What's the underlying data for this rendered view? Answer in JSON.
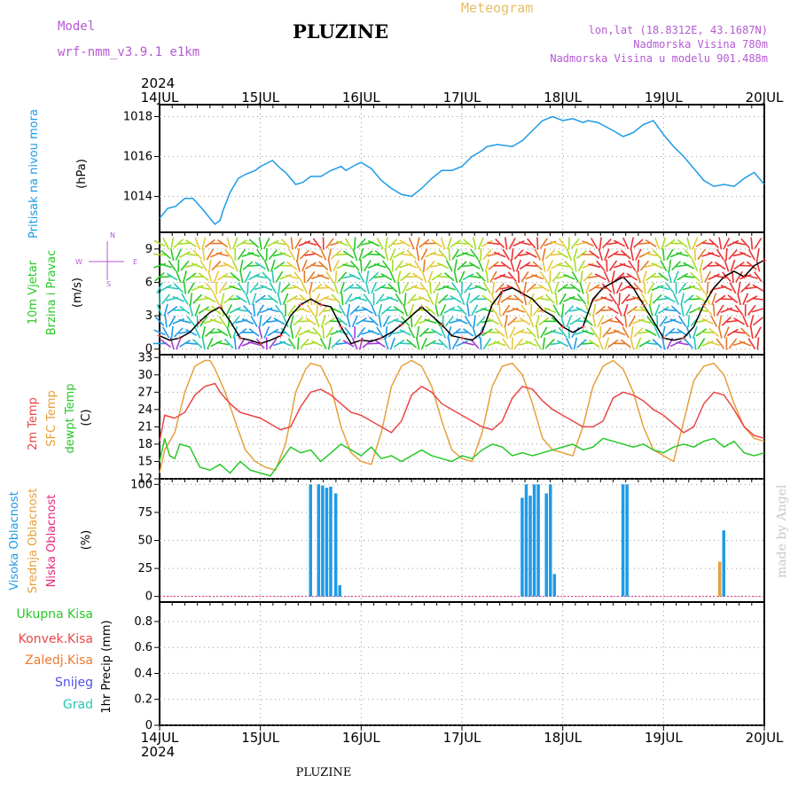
{
  "header": {
    "model_label": "Model",
    "model_name": "wrf-nmm_v3.9.1 e1km",
    "location": "PLUZINE",
    "meteogram_label": "Meteogram",
    "lonlat": "lon,lat (18.8312E, 43.1687N)",
    "elevation": "Nadmorska Visina 780m",
    "model_elevation": "Nadmorska Visina u modelu 901.488m",
    "year": "2024",
    "footer_location": "PLUZINE",
    "signature": "made by Angel"
  },
  "colors": {
    "pressure": "#1e9be6",
    "temp2m": "#eb4646",
    "sfc_temp": "#e6a03c",
    "dewpt": "#28c828",
    "high_cloud": "#1e9be6",
    "mid_cloud": "#e6a03c",
    "low_cloud": "#e6287d",
    "total_precip": "#28c828",
    "conv_precip": "#eb4646",
    "frozen_precip": "#f0782d",
    "snow": "#5050e6",
    "hail": "#28c8b4",
    "model": "#b45ad2",
    "meteogram": "#e6be64"
  },
  "x_axis": {
    "labels": [
      "14JUL",
      "15JUL",
      "16JUL",
      "17JUL",
      "18JUL",
      "19JUL",
      "20JUL"
    ]
  },
  "panels": {
    "pressure": {
      "label": "Pritisak na nivou mora",
      "unit": "(hPa)",
      "ticks": [
        "1014",
        "1016",
        "1018"
      ]
    },
    "wind": {
      "label1": "10m Vjetar",
      "label2": "Brzina i Pravac",
      "unit": "(m/s)",
      "ticks": [
        "0",
        "3",
        "6",
        "9"
      ],
      "compass_w": "W",
      "compass_e": "E",
      "compass_n": "N",
      "compass_s": "S"
    },
    "temp": {
      "label_2m": "2m Temp",
      "label_sfc": "SFC Temp",
      "label_dew": "dewpt Temp",
      "unit": "(C)",
      "ticks": [
        "12",
        "15",
        "18",
        "21",
        "24",
        "27",
        "30",
        "33"
      ]
    },
    "cloud": {
      "label_high": "Visoka Oblacnost",
      "label_mid": "Srednja Oblacnost",
      "label_low": "Niska Oblacnost",
      "unit": "(%)",
      "ticks": [
        "0",
        "25",
        "50",
        "75",
        "100"
      ]
    },
    "precip": {
      "label_total": "Ukupna Kisa",
      "label_conv": "Konvek.Kisa",
      "label_frozen": "Zaledj.Kisa",
      "label_snow": "Snijeg",
      "label_hail": "Grad",
      "unit": "1hr Precip (mm)",
      "ticks": [
        "0",
        "0.2",
        "0.4",
        "0.6",
        "0.8"
      ]
    }
  },
  "chart_data": [
    {
      "type": "line",
      "title": "Pritisak na nivou mora",
      "ylabel": "(hPa)",
      "ylim": [
        1012.2,
        1018.6
      ],
      "x_unit": "days from 14JUL 00",
      "series": [
        {
          "x": [
            0,
            0.08,
            0.16,
            0.25,
            0.33,
            0.42,
            0.5,
            0.55,
            0.6,
            0.63,
            0.7,
            0.78,
            0.85,
            0.95,
            1.0,
            1.12,
            1.2,
            1.25,
            1.35,
            1.42,
            1.5,
            1.6,
            1.7,
            1.8,
            1.85,
            1.95,
            2.0,
            2.1,
            2.2,
            2.3,
            2.4,
            2.5,
            2.6,
            2.7,
            2.8,
            2.9,
            3.0,
            3.1,
            3.2,
            3.25,
            3.35,
            3.5,
            3.6,
            3.7,
            3.8,
            3.9,
            4.0,
            4.1,
            4.2,
            4.25,
            4.35,
            4.5,
            4.6,
            4.7,
            4.8,
            4.9,
            5.0,
            5.1,
            5.2,
            5.3,
            5.4,
            5.5,
            5.6,
            5.7,
            5.8,
            5.9,
            6.0
          ],
          "y": [
            1012.9,
            1013.4,
            1013.5,
            1013.9,
            1013.9,
            1013.4,
            1012.9,
            1012.6,
            1012.8,
            1013.3,
            1014.2,
            1014.9,
            1015.1,
            1015.3,
            1015.5,
            1015.8,
            1015.4,
            1015.2,
            1014.6,
            1014.7,
            1015.0,
            1015.0,
            1015.3,
            1015.5,
            1015.3,
            1015.6,
            1015.7,
            1015.4,
            1014.8,
            1014.4,
            1014.1,
            1014.0,
            1014.4,
            1014.9,
            1015.3,
            1015.3,
            1015.5,
            1016.0,
            1016.3,
            1016.5,
            1016.6,
            1016.5,
            1016.8,
            1017.3,
            1017.8,
            1018.0,
            1017.8,
            1017.9,
            1017.7,
            1017.8,
            1017.7,
            1017.3,
            1017.0,
            1017.2,
            1017.6,
            1017.8,
            1017.1,
            1016.5,
            1016.0,
            1015.4,
            1014.8,
            1014.5,
            1014.6,
            1014.5,
            1014.9,
            1015.2,
            1014.6
          ]
        }
      ]
    },
    {
      "type": "scatter",
      "title": "10m Vjetar Brzina i Pravac",
      "ylabel": "(m/s)",
      "ylim": [
        -0.5,
        10.5
      ],
      "x_unit": "days from 14JUL 00",
      "series": [
        {
          "name": "wind speed",
          "x": [
            0,
            0.1,
            0.2,
            0.3,
            0.4,
            0.5,
            0.6,
            0.7,
            0.8,
            0.9,
            1.0,
            1.1,
            1.2,
            1.3,
            1.4,
            1.5,
            1.6,
            1.7,
            1.8,
            1.9,
            2.0,
            2.1,
            2.2,
            2.3,
            2.4,
            2.5,
            2.6,
            2.7,
            2.8,
            2.9,
            3.0,
            3.1,
            3.2,
            3.3,
            3.4,
            3.5,
            3.6,
            3.7,
            3.8,
            3.9,
            4.0,
            4.1,
            4.2,
            4.3,
            4.4,
            4.5,
            4.6,
            4.7,
            4.8,
            4.9,
            5.0,
            5.1,
            5.2,
            5.3,
            5.4,
            5.5,
            5.6,
            5.7,
            5.8,
            5.9,
            6.0
          ],
          "y": [
            1.2,
            0.8,
            1.0,
            1.5,
            2.5,
            3.3,
            3.8,
            2.5,
            1.0,
            0.8,
            0.5,
            0.8,
            1.2,
            3.0,
            4.0,
            4.5,
            4.0,
            3.8,
            2.0,
            0.5,
            0.8,
            0.7,
            1.0,
            1.5,
            2.2,
            3.0,
            3.8,
            3.0,
            2.2,
            1.2,
            1.0,
            0.8,
            1.5,
            4.0,
            5.2,
            5.5,
            5.0,
            4.5,
            3.5,
            3.0,
            2.0,
            1.5,
            2.0,
            4.5,
            5.5,
            6.0,
            6.5,
            5.5,
            4.0,
            2.5,
            1.0,
            0.8,
            1.0,
            2.0,
            4.0,
            5.5,
            6.5,
            7.0,
            6.5,
            7.5,
            8.0
          ]
        }
      ]
    },
    {
      "type": "line",
      "title": "2m Temp / SFC Temp / dewpt Temp",
      "ylabel": "(C)",
      "ylim": [
        12,
        33.5
      ],
      "x_unit": "days from 14JUL 00",
      "series": [
        {
          "name": "2m Temp",
          "x": [
            0,
            0.05,
            0.15,
            0.25,
            0.35,
            0.45,
            0.55,
            0.6,
            0.7,
            0.8,
            0.9,
            1.0,
            1.1,
            1.2,
            1.3,
            1.4,
            1.5,
            1.6,
            1.7,
            1.8,
            1.9,
            2.0,
            2.1,
            2.2,
            2.3,
            2.4,
            2.5,
            2.6,
            2.7,
            2.8,
            2.9,
            3.0,
            3.1,
            3.2,
            3.3,
            3.4,
            3.5,
            3.6,
            3.7,
            3.8,
            3.9,
            4.0,
            4.1,
            4.2,
            4.3,
            4.4,
            4.5,
            4.6,
            4.7,
            4.8,
            4.9,
            5.0,
            5.1,
            5.2,
            5.3,
            5.4,
            5.5,
            5.6,
            5.7,
            5.8,
            5.9,
            6.0
          ],
          "y": [
            18.5,
            23.0,
            22.5,
            23.5,
            26.5,
            28.0,
            28.5,
            27.0,
            25.0,
            23.5,
            23.0,
            22.5,
            21.5,
            20.5,
            21.0,
            24.5,
            27.0,
            27.5,
            26.5,
            25.0,
            23.5,
            23.0,
            22.0,
            21.0,
            20.0,
            22.0,
            26.5,
            28.0,
            27.0,
            25.0,
            24.0,
            23.0,
            22.0,
            21.0,
            20.5,
            22.0,
            26.0,
            28.0,
            27.5,
            25.5,
            24.0,
            23.0,
            22.0,
            21.0,
            21.0,
            22.0,
            26.0,
            27.0,
            26.5,
            25.5,
            24.0,
            23.0,
            21.5,
            20.0,
            21.0,
            25.0,
            27.0,
            26.5,
            24.0,
            21.0,
            19.5,
            19.0
          ]
        },
        {
          "name": "SFC Temp",
          "x": [
            0,
            0.05,
            0.15,
            0.25,
            0.35,
            0.45,
            0.5,
            0.55,
            0.65,
            0.75,
            0.85,
            0.95,
            1.05,
            1.15,
            1.25,
            1.35,
            1.45,
            1.5,
            1.6,
            1.7,
            1.8,
            1.9,
            2.0,
            2.1,
            2.2,
            2.3,
            2.4,
            2.5,
            2.6,
            2.7,
            2.8,
            2.9,
            3.0,
            3.1,
            3.2,
            3.3,
            3.4,
            3.5,
            3.6,
            3.7,
            3.8,
            3.9,
            4.0,
            4.1,
            4.2,
            4.3,
            4.4,
            4.5,
            4.6,
            4.7,
            4.8,
            4.9,
            5.0,
            5.1,
            5.2,
            5.3,
            5.4,
            5.5,
            5.6,
            5.7,
            5.8,
            5.9,
            6.0
          ],
          "y": [
            13.0,
            17.0,
            20.0,
            27.0,
            31.5,
            32.5,
            32.5,
            31.0,
            27.0,
            22.0,
            17.0,
            15.0,
            14.0,
            13.5,
            18.0,
            27.0,
            31.0,
            32.0,
            31.5,
            28.0,
            21.0,
            16.5,
            15.0,
            14.5,
            20.0,
            28.0,
            31.5,
            32.5,
            31.5,
            28.0,
            22.0,
            17.0,
            15.5,
            15.0,
            20.0,
            28.0,
            31.5,
            32.0,
            30.0,
            25.0,
            19.0,
            17.0,
            16.5,
            16.0,
            21.0,
            28.0,
            31.5,
            32.5,
            31.0,
            27.0,
            21.0,
            17.0,
            16.0,
            15.0,
            22.0,
            29.0,
            31.5,
            32.0,
            30.0,
            25.0,
            21.0,
            19.0,
            18.5
          ]
        },
        {
          "name": "dewpt Temp",
          "x": [
            0,
            0.05,
            0.1,
            0.15,
            0.2,
            0.3,
            0.4,
            0.5,
            0.6,
            0.7,
            0.8,
            0.9,
            1.0,
            1.1,
            1.2,
            1.3,
            1.4,
            1.5,
            1.6,
            1.7,
            1.8,
            1.9,
            2.0,
            2.1,
            2.2,
            2.3,
            2.4,
            2.5,
            2.6,
            2.7,
            2.8,
            2.9,
            3.0,
            3.1,
            3.2,
            3.3,
            3.4,
            3.5,
            3.6,
            3.7,
            3.8,
            3.9,
            4.0,
            4.1,
            4.2,
            4.3,
            4.4,
            4.5,
            4.6,
            4.7,
            4.8,
            4.9,
            5.0,
            5.1,
            5.2,
            5.3,
            5.4,
            5.5,
            5.6,
            5.7,
            5.8,
            5.9,
            6.0
          ],
          "y": [
            15.0,
            19.0,
            16.0,
            15.5,
            18.0,
            17.5,
            14.0,
            13.5,
            14.5,
            13.0,
            15.0,
            13.5,
            13.0,
            12.5,
            15.0,
            17.5,
            16.5,
            17.0,
            15.0,
            16.5,
            18.0,
            17.0,
            16.0,
            17.5,
            15.5,
            16.0,
            15.0,
            16.0,
            17.0,
            16.0,
            15.5,
            15.0,
            16.0,
            15.5,
            17.0,
            18.0,
            17.5,
            16.0,
            16.5,
            16.0,
            16.5,
            17.0,
            17.5,
            18.0,
            17.0,
            17.5,
            19.0,
            18.5,
            18.0,
            17.5,
            18.0,
            17.0,
            16.5,
            17.5,
            18.0,
            17.5,
            18.5,
            19.0,
            17.5,
            18.5,
            16.5,
            16.0,
            16.5
          ]
        }
      ]
    },
    {
      "type": "bar",
      "title": "Visoka / Srednja / Niska Oblacnost",
      "ylabel": "(%)",
      "ylim": [
        -5,
        105
      ],
      "x_unit": "days from 14JUL 00",
      "series": [
        {
          "name": "Visoka Oblacnost",
          "x": [
            1.5,
            1.58,
            1.62,
            1.66,
            1.7,
            1.75,
            1.79,
            3.6,
            3.64,
            3.68,
            3.72,
            3.76,
            3.84,
            3.88,
            3.92,
            4.6,
            4.64,
            5.6
          ],
          "y": [
            100,
            100,
            99,
            97,
            98,
            92,
            10,
            88,
            100,
            90,
            100,
            100,
            92,
            100,
            20,
            100,
            100,
            59
          ]
        },
        {
          "name": "Srednja Oblacnost",
          "x": [
            5.56
          ],
          "y": [
            31
          ]
        }
      ]
    },
    {
      "type": "bar",
      "title": "1hr Precip",
      "ylabel": "1hr Precip (mm)",
      "ylim": [
        0,
        0.95
      ],
      "x_unit": "days from 14JUL 00",
      "series": [
        {
          "name": "Ukupna Kisa",
          "x": [],
          "y": []
        }
      ]
    }
  ]
}
